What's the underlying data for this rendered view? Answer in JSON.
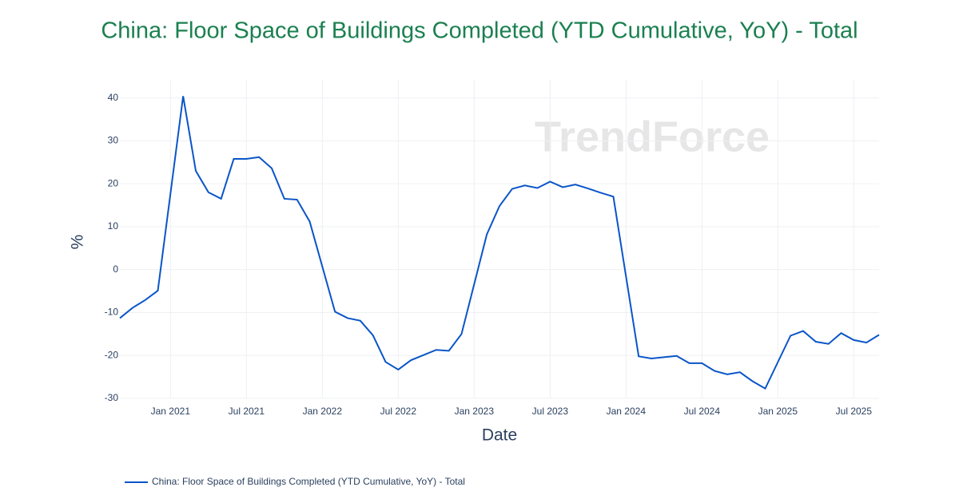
{
  "chart_data": {
    "type": "line",
    "title": "China: Floor Space of Buildings Completed  (YTD Cumulative, YoY) - Total",
    "x_label": "Date",
    "y_label": "%",
    "watermark": "TrendForce",
    "x": [
      "2020-09",
      "2020-10",
      "2020-11",
      "2020-12",
      "2021-02",
      "2021-03",
      "2021-04",
      "2021-05",
      "2021-06",
      "2021-07",
      "2021-08",
      "2021-09",
      "2021-10",
      "2021-11",
      "2021-12",
      "2022-02",
      "2022-03",
      "2022-04",
      "2022-05",
      "2022-06",
      "2022-07",
      "2022-08",
      "2022-09",
      "2022-10",
      "2022-11",
      "2022-12",
      "2023-02",
      "2023-03",
      "2023-04",
      "2023-05",
      "2023-06",
      "2023-07",
      "2023-08",
      "2023-09",
      "2023-10",
      "2023-11",
      "2023-12",
      "2024-02",
      "2024-03",
      "2024-04",
      "2024-05",
      "2024-06",
      "2024-07",
      "2024-08",
      "2024-09",
      "2024-10",
      "2024-11",
      "2024-12",
      "2025-02",
      "2025-03",
      "2025-04",
      "2025-05",
      "2025-06",
      "2025-07",
      "2025-08",
      "2025-09"
    ],
    "series": [
      {
        "name": "China: Floor Space of Buildings Completed  (YTD Cumulative, YoY) - Total",
        "color": "#0a55c8",
        "values": [
          -11.3,
          -8.9,
          -7.1,
          -4.9,
          40.4,
          23.0,
          18.0,
          16.5,
          25.8,
          25.8,
          26.2,
          23.6,
          16.5,
          16.3,
          11.2,
          -9.8,
          -11.3,
          -11.9,
          -15.3,
          -21.5,
          -23.3,
          -21.1,
          -19.9,
          -18.7,
          -18.9,
          -15.0,
          8.2,
          14.8,
          18.8,
          19.6,
          19.0,
          20.5,
          19.2,
          19.8,
          18.9,
          17.9,
          17.0,
          -20.2,
          -20.7,
          -20.4,
          -20.1,
          -21.8,
          -21.8,
          -23.6,
          -24.4,
          -23.9,
          -26.0,
          -27.7,
          -15.4,
          -14.3,
          -16.8,
          -17.3,
          -14.8,
          -16.4,
          -17.0,
          -15.2
        ]
      }
    ],
    "xlim": [
      "2020-09",
      "2025-09"
    ],
    "xticks": [
      {
        "value": "2021-01",
        "label": "Jan 2021"
      },
      {
        "value": "2021-07",
        "label": "Jul 2021"
      },
      {
        "value": "2022-01",
        "label": "Jan 2022"
      },
      {
        "value": "2022-07",
        "label": "Jul 2022"
      },
      {
        "value": "2023-01",
        "label": "Jan 2023"
      },
      {
        "value": "2023-07",
        "label": "Jul 2023"
      },
      {
        "value": "2024-01",
        "label": "Jan 2024"
      },
      {
        "value": "2024-07",
        "label": "Jul 2024"
      },
      {
        "value": "2025-01",
        "label": "Jan 2025"
      },
      {
        "value": "2025-07",
        "label": "Jul 2025"
      }
    ],
    "ylim": [
      -30,
      44.2
    ],
    "yticks": [
      -30,
      -20,
      -10,
      0,
      10,
      20,
      30,
      40
    ],
    "grid": true
  }
}
